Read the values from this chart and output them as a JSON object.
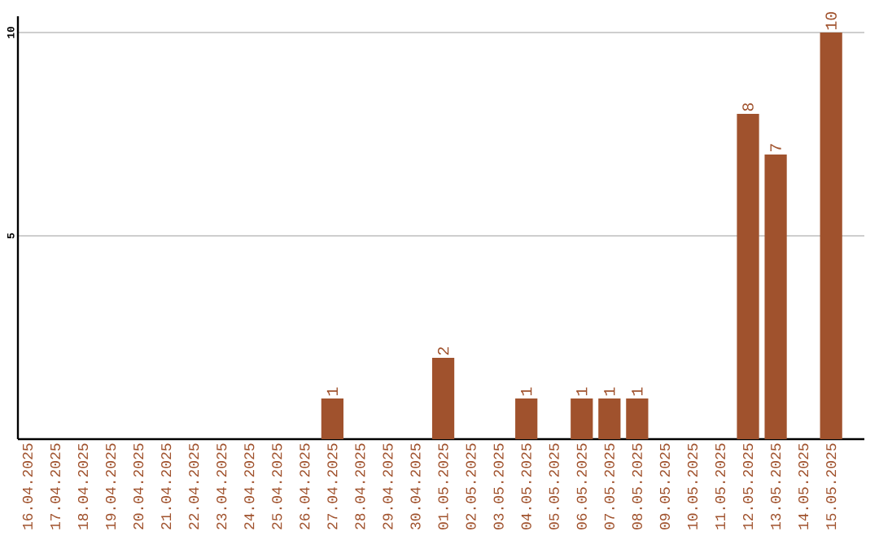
{
  "chart_data": {
    "type": "bar",
    "categories": [
      "16.04.2025",
      "17.04.2025",
      "18.04.2025",
      "19.04.2025",
      "20.04.2025",
      "21.04.2025",
      "22.04.2025",
      "23.04.2025",
      "24.04.2025",
      "25.04.2025",
      "26.04.2025",
      "27.04.2025",
      "28.04.2025",
      "29.04.2025",
      "30.04.2025",
      "01.05.2025",
      "02.05.2025",
      "03.05.2025",
      "04.05.2025",
      "05.05.2025",
      "06.05.2025",
      "07.05.2025",
      "08.05.2025",
      "09.05.2025",
      "10.05.2025",
      "11.05.2025",
      "12.05.2025",
      "13.05.2025",
      "14.05.2025",
      "15.05.2025"
    ],
    "values": [
      0,
      0,
      0,
      0,
      0,
      0,
      0,
      0,
      0,
      0,
      0,
      1,
      0,
      0,
      0,
      2,
      0,
      0,
      1,
      0,
      1,
      1,
      1,
      0,
      0,
      0,
      8,
      7,
      0,
      10
    ],
    "value_labels": [
      null,
      null,
      null,
      null,
      null,
      null,
      null,
      null,
      null,
      null,
      null,
      "1",
      null,
      null,
      null,
      "2",
      null,
      null,
      "1",
      null,
      "1",
      "1",
      "1",
      null,
      null,
      null,
      "8",
      "7",
      null,
      "10"
    ],
    "color": "#a0522d",
    "ylim": [
      0,
      10.4
    ],
    "yticks": [
      5,
      10
    ],
    "grid": "y"
  }
}
